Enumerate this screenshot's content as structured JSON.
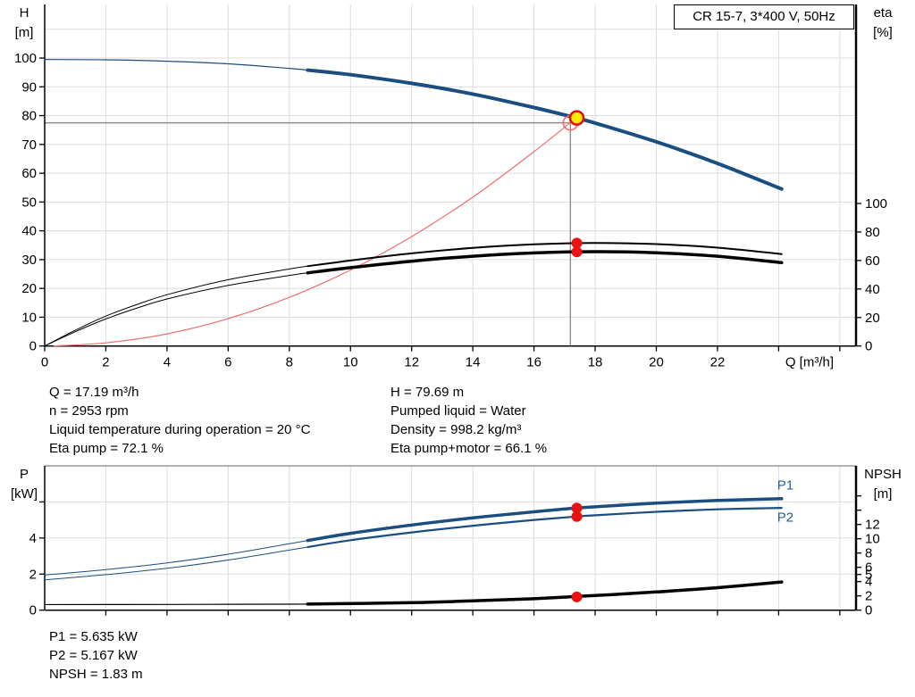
{
  "title_box": "CR 15-7, 3*400 V, 50Hz",
  "info_block": {
    "left": [
      "Q = 17.19 m³/h",
      "n = 2953 rpm",
      "Liquid temperature during operation = 20 °C",
      "Eta pump = 72.1 %"
    ],
    "right": [
      "H = 79.69 m",
      "Pumped liquid = Water",
      "Density = 998.2 kg/m³",
      "Eta pump+motor = 66.1 %"
    ]
  },
  "results_block": [
    "P1 = 5.635 kW",
    "P2 = 5.167 kW",
    "NPSH = 1.83 m"
  ],
  "colors": {
    "curve_blue": "#1b4e80",
    "curve_black": "#000000",
    "system_red": "#ef6e6e",
    "dot_red": "#e81212",
    "duty_yellow": "#ffeb00",
    "crosshair_gray": "#8c8c8c",
    "grid_gray": "#dcdcdc",
    "label_blue": "#1f5fa8"
  },
  "chart_data": {
    "type": "line",
    "title": "CR 15-7, 3*400 V, 50Hz",
    "charts": [
      {
        "name": "head-efficiency-chart",
        "x_axis": {
          "min": 0,
          "max": 26.53,
          "label": "Q [m³/h]",
          "ticks": [
            {
              "v": 0,
              "label": "0"
            },
            {
              "v": 2,
              "label": "2"
            },
            {
              "v": 4,
              "label": "4"
            },
            {
              "v": 6,
              "label": "6"
            },
            {
              "v": 8,
              "label": "8"
            },
            {
              "v": 10,
              "label": "10"
            },
            {
              "v": 12,
              "label": "12"
            },
            {
              "v": 14,
              "label": "14"
            },
            {
              "v": 16,
              "label": "16"
            },
            {
              "v": 18,
              "label": "18"
            },
            {
              "v": 20,
              "label": "20"
            },
            {
              "v": 22,
              "label": "22"
            },
            {
              "v": 24
            },
            {
              "v": 26
            }
          ]
        },
        "left_axis": {
          "lines": [
            "H",
            "[m]"
          ],
          "min": 0,
          "max": 118.6,
          "ticks": [
            {
              "v": 0,
              "label": "0"
            },
            {
              "v": 10,
              "label": "10"
            },
            {
              "v": 20,
              "label": "20"
            },
            {
              "v": 30,
              "label": "30"
            },
            {
              "v": 40,
              "label": "40"
            },
            {
              "v": 50,
              "label": "50"
            },
            {
              "v": 60,
              "label": "60"
            },
            {
              "v": 70,
              "label": "70"
            },
            {
              "v": 80,
              "label": "80"
            },
            {
              "v": 90,
              "label": "90"
            },
            {
              "v": 100,
              "label": "100"
            }
          ],
          "grid": [
            10,
            20,
            30,
            40,
            50,
            60,
            70,
            80,
            90,
            100,
            110
          ]
        },
        "right_axis": {
          "lines": [
            "eta",
            "[%]"
          ],
          "min": 0,
          "max": 239.6,
          "ticks": [
            {
              "v": 0,
              "label": "0"
            },
            {
              "v": 20,
              "label": "20"
            },
            {
              "v": 40,
              "label": "40"
            },
            {
              "v": 60,
              "label": "60"
            },
            {
              "v": 80,
              "label": "80"
            },
            {
              "v": 100,
              "label": "100"
            }
          ]
        },
        "series": [
          {
            "name": "system-curve",
            "axis": "left",
            "color": "#ef6e6e",
            "w_thin": 1.2,
            "w_thick": 1.2,
            "points": [
              [
                0.3,
                0
              ],
              [
                2,
                1.1
              ],
              [
                4,
                4.2
              ],
              [
                6,
                9.5
              ],
              [
                8,
                16.9
              ],
              [
                10,
                26.4
              ],
              [
                12,
                38
              ],
              [
                14,
                51.7
              ],
              [
                16,
                67.5
              ],
              [
                17.4,
                79.4
              ]
            ]
          },
          {
            "name": "eta-pump-curve",
            "axis": "right",
            "color": "#000000",
            "thin_until": 8.6,
            "w_thin": 1,
            "w_thick": 2,
            "points": [
              [
                0,
                0
              ],
              [
                1,
                11
              ],
              [
                2,
                21
              ],
              [
                3,
                29
              ],
              [
                4,
                36
              ],
              [
                6,
                46.5
              ],
              [
                8,
                54
              ],
              [
                8.6,
                56
              ],
              [
                10,
                60
              ],
              [
                12,
                65
              ],
              [
                14,
                68.8
              ],
              [
                16,
                71.3
              ],
              [
                18,
                72.3
              ],
              [
                20,
                71.5
              ],
              [
                22,
                69
              ],
              [
                24.1,
                64.5
              ]
            ]
          },
          {
            "name": "eta-pump-motor-curve",
            "axis": "right",
            "color": "#000000",
            "thin_until": 8.6,
            "w_thin": 1,
            "w_thick": 3.5,
            "points": [
              [
                0,
                0
              ],
              [
                1,
                10
              ],
              [
                2,
                19
              ],
              [
                3,
                26.5
              ],
              [
                4,
                33
              ],
              [
                6,
                42.5
              ],
              [
                8,
                49.5
              ],
              [
                8.6,
                51.3
              ],
              [
                10,
                55
              ],
              [
                12,
                59.5
              ],
              [
                14,
                63
              ],
              [
                16,
                65.3
              ],
              [
                18,
                66.2
              ],
              [
                20,
                65.4
              ],
              [
                22,
                63
              ],
              [
                24.1,
                58.5
              ]
            ]
          },
          {
            "name": "head-curve",
            "axis": "left",
            "color": "#1b4e80",
            "thin_until": 8.6,
            "w_thin": 1.2,
            "w_thick": 4,
            "points": [
              [
                0,
                99.5
              ],
              [
                2,
                99.4
              ],
              [
                4,
                98.9
              ],
              [
                6,
                98
              ],
              [
                8,
                96.4
              ],
              [
                8.6,
                95.8
              ],
              [
                10,
                94.2
              ],
              [
                12,
                91.2
              ],
              [
                14,
                87.5
              ],
              [
                16,
                82.8
              ],
              [
                17.19,
                79.7
              ],
              [
                18,
                77.4
              ],
              [
                20,
                70.9
              ],
              [
                22,
                63.4
              ],
              [
                24.1,
                54.5
              ]
            ]
          }
        ],
        "crosshair": {
          "q": 17.19,
          "v": 77.5,
          "axis": "left"
        },
        "markers": [
          {
            "type": "open",
            "name": "requested-duty-marker",
            "q": 17.19,
            "v": 77.5,
            "axis": "left"
          },
          {
            "type": "dot",
            "name": "eta-pump-dot",
            "q": 17.4,
            "v": 72.2,
            "axis": "right"
          },
          {
            "type": "dot",
            "name": "eta-pump-motor-dot",
            "q": 17.4,
            "v": 66.0,
            "axis": "right"
          },
          {
            "type": "duty",
            "name": "duty-point-marker",
            "q": 17.4,
            "v": 79.2,
            "axis": "left"
          }
        ],
        "curve_labels": []
      },
      {
        "name": "power-npsh-chart",
        "x_axis": {
          "min": 0,
          "max": 26.53,
          "ticks": [
            {
              "v": 2
            },
            {
              "v": 4
            },
            {
              "v": 6
            },
            {
              "v": 8
            },
            {
              "v": 10
            },
            {
              "v": 12
            },
            {
              "v": 14
            },
            {
              "v": 16
            },
            {
              "v": 18
            },
            {
              "v": 20
            },
            {
              "v": 22
            },
            {
              "v": 24
            },
            {
              "v": 26
            }
          ]
        },
        "left_axis": {
          "lines": [
            "P",
            "[kW]"
          ],
          "min": 0,
          "max": 8,
          "ticks": [
            {
              "v": 0,
              "label": "0"
            },
            {
              "v": 2,
              "label": "2"
            },
            {
              "v": 4,
              "label": "4"
            },
            {
              "v": 6
            }
          ],
          "grid": [
            2,
            4,
            6,
            8
          ]
        },
        "right_axis": {
          "lines": [
            "NPSH",
            "[m]"
          ],
          "min": 0,
          "max": 20.2,
          "ticks": [
            {
              "v": 0,
              "label": "0"
            },
            {
              "v": 2,
              "label": "2"
            },
            {
              "v": 4,
              "label": "4"
            },
            {
              "v": 5,
              "label": "5"
            },
            {
              "v": 6,
              "label": "6"
            },
            {
              "v": 8,
              "label": "8"
            },
            {
              "v": 10,
              "label": "10"
            },
            {
              "v": 12,
              "label": "12"
            },
            {
              "v": 14
            },
            {
              "v": 16
            }
          ]
        },
        "series": [
          {
            "name": "npsh-curve",
            "axis": "right",
            "color": "#000000",
            "thin_until": 8.6,
            "w_thin": 1.2,
            "w_thick": 3.5,
            "points": [
              [
                0,
                0.78
              ],
              [
                4,
                0.8
              ],
              [
                8,
                0.84
              ],
              [
                8.6,
                0.86
              ],
              [
                12,
                1.05
              ],
              [
                14,
                1.3
              ],
              [
                16,
                1.6
              ],
              [
                18,
                2.05
              ],
              [
                20,
                2.55
              ],
              [
                22,
                3.15
              ],
              [
                24.1,
                3.95
              ]
            ]
          },
          {
            "name": "p2-curve",
            "axis": "left",
            "color": "#1b4e80",
            "thin_until": 8.6,
            "w_thin": 1,
            "w_thick": 2.2,
            "points": [
              [
                0,
                1.68
              ],
              [
                2,
                1.97
              ],
              [
                4,
                2.32
              ],
              [
                6,
                2.78
              ],
              [
                8,
                3.33
              ],
              [
                8.6,
                3.5
              ],
              [
                10,
                3.88
              ],
              [
                12,
                4.31
              ],
              [
                14,
                4.68
              ],
              [
                16,
                5.0
              ],
              [
                17.19,
                5.167
              ],
              [
                18,
                5.26
              ],
              [
                20,
                5.45
              ],
              [
                22,
                5.59
              ],
              [
                24.1,
                5.67
              ]
            ]
          },
          {
            "name": "p1-curve",
            "axis": "left",
            "color": "#1b4e80",
            "thin_until": 8.6,
            "w_thin": 1,
            "w_thick": 3.5,
            "points": [
              [
                0,
                1.95
              ],
              [
                2,
                2.25
              ],
              [
                4,
                2.62
              ],
              [
                6,
                3.1
              ],
              [
                8,
                3.68
              ],
              [
                8.6,
                3.86
              ],
              [
                10,
                4.26
              ],
              [
                12,
                4.72
              ],
              [
                14,
                5.12
              ],
              [
                16,
                5.45
              ],
              [
                17.19,
                5.635
              ],
              [
                18,
                5.73
              ],
              [
                20,
                5.93
              ],
              [
                22,
                6.08
              ],
              [
                24.1,
                6.18
              ]
            ]
          }
        ],
        "markers": [
          {
            "type": "dot",
            "name": "p1-dot",
            "q": 17.4,
            "v": 5.66,
            "axis": "left"
          },
          {
            "type": "dot",
            "name": "p2-dot",
            "q": 17.4,
            "v": 5.19,
            "axis": "left"
          },
          {
            "type": "dot",
            "name": "npsh-dot",
            "q": 17.4,
            "v": 1.85,
            "axis": "right"
          }
        ],
        "curve_labels": [
          {
            "text": "P1",
            "q": 23.95,
            "v": 6.68,
            "axis": "left",
            "color": "#1f5fa8"
          },
          {
            "text": "P2",
            "q": 23.95,
            "v": 4.92,
            "axis": "left",
            "color": "#1f5fa8"
          }
        ]
      }
    ]
  }
}
